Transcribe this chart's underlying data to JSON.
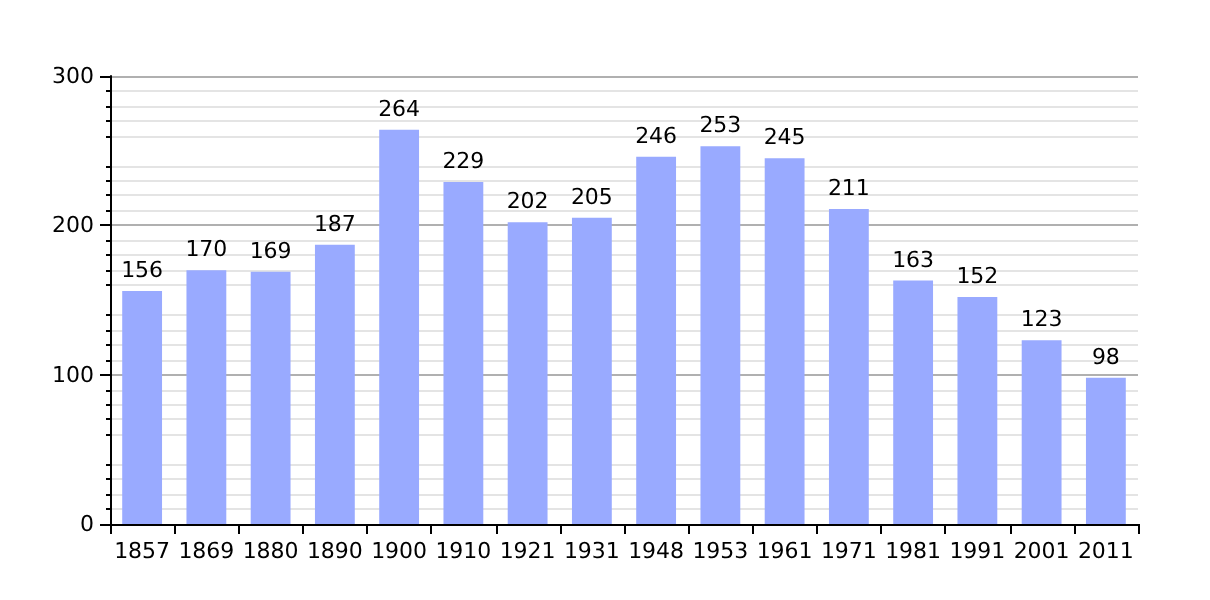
{
  "chart_data": {
    "type": "bar",
    "categories": [
      "1857",
      "1869",
      "1880",
      "1890",
      "1900",
      "1910",
      "1921",
      "1931",
      "1948",
      "1953",
      "1961",
      "1971",
      "1981",
      "1991",
      "2001",
      "2011"
    ],
    "values": [
      156,
      170,
      169,
      187,
      264,
      229,
      202,
      205,
      246,
      253,
      245,
      211,
      163,
      152,
      123,
      98
    ],
    "color": "#99aaff",
    "ylim": [
      0,
      300
    ],
    "yticks": [
      0,
      100,
      200,
      300
    ],
    "grid": "y",
    "data_labels": true
  }
}
